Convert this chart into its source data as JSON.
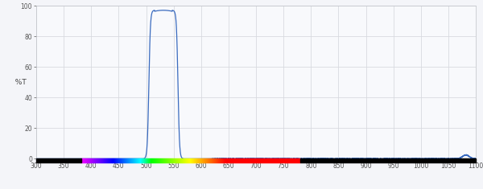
{
  "x_min": 300,
  "x_max": 1100,
  "y_min": 0,
  "y_max": 100,
  "x_ticks": [
    300,
    350,
    400,
    450,
    500,
    550,
    600,
    650,
    700,
    750,
    800,
    850,
    900,
    950,
    1000,
    1050,
    1100
  ],
  "y_ticks": [
    0,
    20,
    40,
    60,
    80,
    100
  ],
  "ylabel": "  %T",
  "peak_start": 505,
  "peak_end": 558,
  "peak_height": 97,
  "line_color": "#3a6bbf",
  "fig_facecolor": "#f4f5f9",
  "ax_facecolor": "#f8f9fc",
  "grid_color": "#d8dae0",
  "spine_color": "#c0c2c8",
  "tick_color": "#888888",
  "tick_label_color": "#555555",
  "ylabel_color": "#444444"
}
